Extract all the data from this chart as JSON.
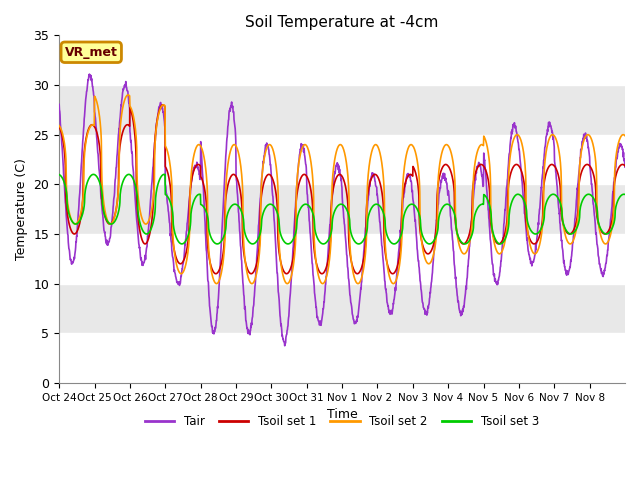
{
  "title": "Soil Temperature at -4cm",
  "xlabel": "Time",
  "ylabel": "Temperature (C)",
  "ylim": [
    0,
    35
  ],
  "n_days": 16,
  "annotation_text": "VR_met",
  "background_color": "#ffffff",
  "plot_bg_color": "#e8e8e8",
  "grid_color": "#ffffff",
  "line_colors": {
    "Tair": "#9933cc",
    "Tsoil set 1": "#cc0000",
    "Tsoil set 2": "#ff9900",
    "Tsoil set 3": "#00cc00"
  },
  "xtick_labels": [
    "Oct 24",
    "Oct 25",
    "Oct 26",
    "Oct 27",
    "Oct 28",
    "Oct 29",
    "Oct 30",
    "Oct 31",
    "Nov 1",
    "Nov 2",
    "Nov 3",
    "Nov 4",
    "Nov 5",
    "Nov 6",
    "Nov 7",
    "Nov 8"
  ],
  "ytick_values": [
    0,
    5,
    10,
    15,
    20,
    25,
    30,
    35
  ],
  "tair_peaks": [
    31,
    30,
    28,
    22,
    28,
    24,
    24,
    22,
    21,
    21,
    21,
    22,
    26,
    26,
    25,
    24
  ],
  "tair_troughs": [
    12,
    14,
    12,
    10,
    5,
    5,
    4,
    6,
    6,
    7,
    7,
    7,
    10,
    12,
    11,
    11
  ],
  "ts1_peaks": [
    26,
    26,
    28,
    22,
    21,
    21,
    21,
    21,
    21,
    21,
    22,
    22,
    22,
    22,
    22,
    22
  ],
  "ts1_troughs": [
    15,
    16,
    14,
    12,
    11,
    11,
    11,
    11,
    11,
    11,
    13,
    14,
    14,
    14,
    15,
    15
  ],
  "ts2_peaks": [
    26,
    29,
    28,
    24,
    24,
    24,
    24,
    24,
    24,
    24,
    24,
    24,
    25,
    25,
    25,
    25
  ],
  "ts2_troughs": [
    16,
    16,
    16,
    11,
    10,
    10,
    10,
    10,
    10,
    10,
    12,
    13,
    13,
    13,
    14,
    14
  ],
  "ts3_peaks": [
    21,
    21,
    21,
    19,
    18,
    18,
    18,
    18,
    18,
    18,
    18,
    18,
    19,
    19,
    19,
    19
  ],
  "ts3_troughs": [
    16,
    16,
    15,
    14,
    14,
    14,
    14,
    14,
    14,
    14,
    14,
    14,
    14,
    15,
    15,
    15
  ],
  "tair_phase": 0.62,
  "ts1_phase": 0.68,
  "ts2_phase": 0.7,
  "ts3_phase": 0.72,
  "tair_sharpness": 1.0,
  "ts1_sharpness": 2.5,
  "ts2_sharpness": 2.5,
  "ts3_sharpness": 2.0
}
